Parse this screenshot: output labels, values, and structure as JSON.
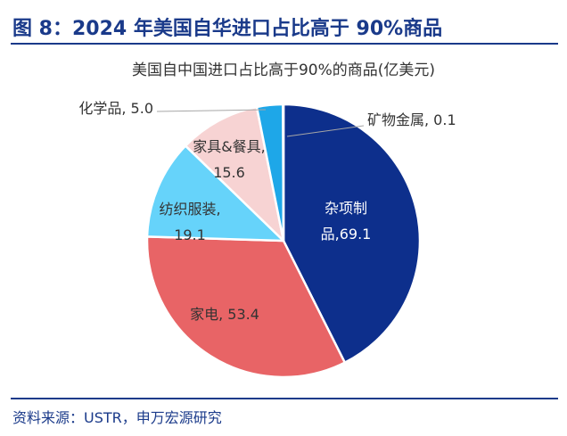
{
  "figure": {
    "title": "图 8：2024 年美国自华进口占比高于 90%商品",
    "source": "资料来源：USTR，申万宏源研究"
  },
  "chart_data": {
    "type": "pie",
    "title": "美国自中国进口占比高于90%的商品(亿美元)",
    "unit": "亿美元",
    "slices": [
      {
        "name": "杂项制品",
        "value": 69.1,
        "color": "#0d2f8c",
        "label_lines": [
          "杂项制",
          "品,69.1"
        ],
        "text_color": "#ffffff"
      },
      {
        "name": "家电",
        "value": 53.4,
        "color": "#e86466",
        "label_lines": [
          "家电, 53.4"
        ],
        "text_color": "#333333"
      },
      {
        "name": "纺织服装",
        "value": 19.1,
        "color": "#66d3fa",
        "label_lines": [
          "纺织服装,",
          "19.1"
        ],
        "text_color": "#333333"
      },
      {
        "name": "家具&餐具",
        "value": 15.6,
        "color": "#f7d3d3",
        "label_lines": [
          "家具&餐具,",
          "15.6"
        ],
        "text_color": "#333333"
      },
      {
        "name": "化学品",
        "value": 5.0,
        "color": "#1ea7e8",
        "label_lines": [
          "化学品, 5.0"
        ],
        "text_color": "#333333"
      },
      {
        "name": "矿物金属",
        "value": 0.1,
        "color": "#b0c4de",
        "label_lines": [
          "矿物金属, 0.1"
        ],
        "text_color": "#333333"
      }
    ],
    "start_angle_deg": 0,
    "direction": "clockwise"
  }
}
